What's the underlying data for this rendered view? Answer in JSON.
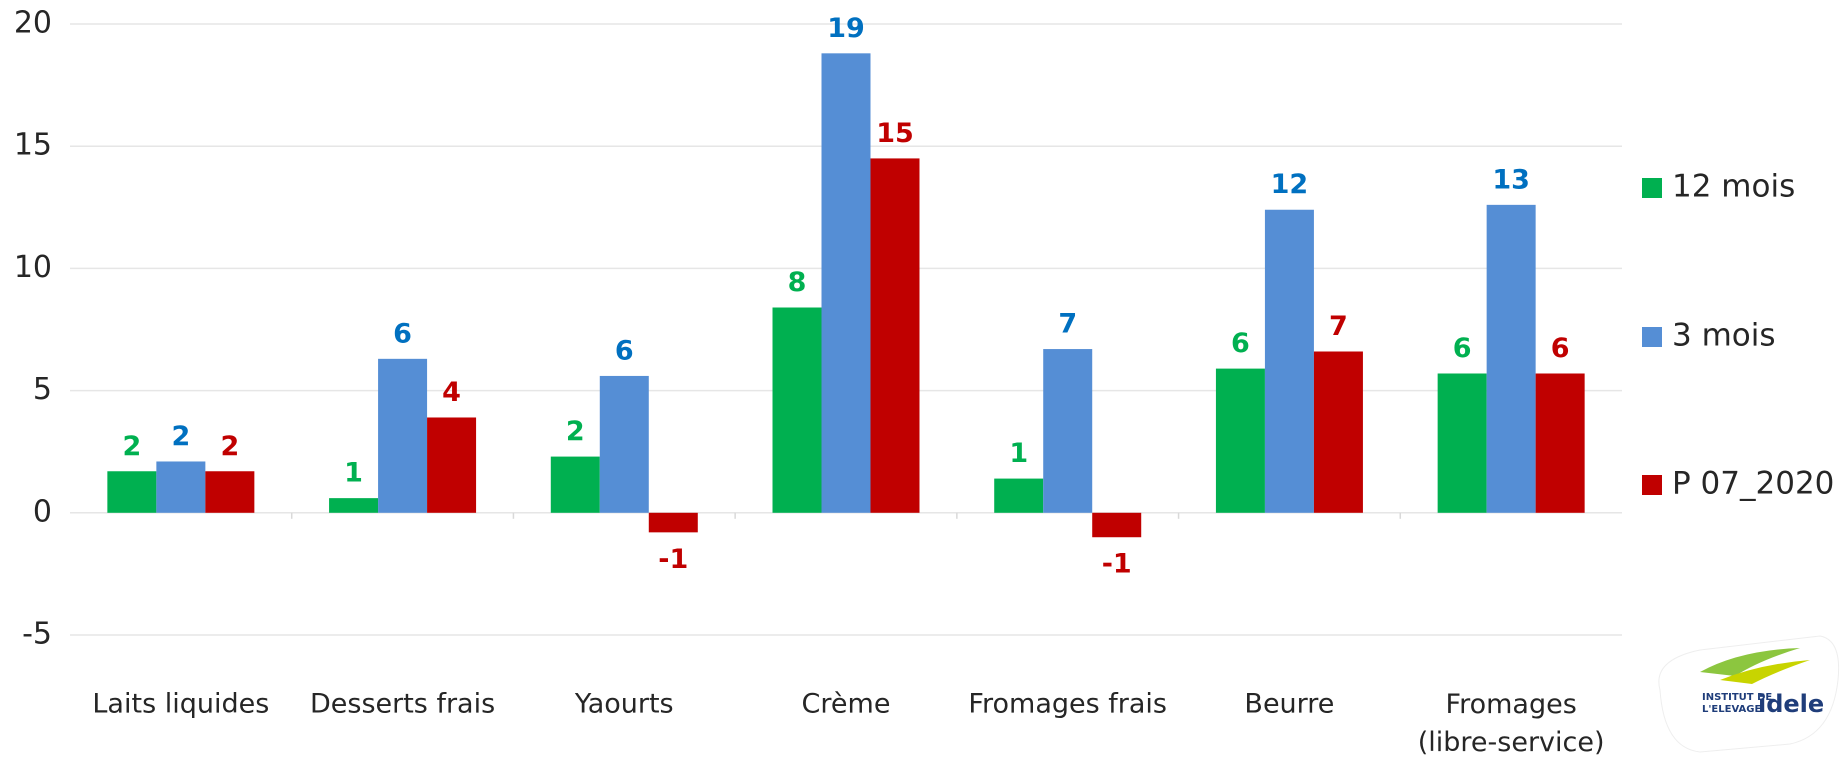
{
  "chart_data": {
    "type": "bar",
    "categories": [
      "Laits liquides",
      "Desserts frais",
      "Yaourts",
      "Crème",
      "Fromages frais",
      "Beurre",
      "Fromages\n(libre-service)"
    ],
    "series": [
      {
        "name": "12 mois",
        "color": "#00b050",
        "label_color": "#00b050",
        "values": [
          1.7,
          0.6,
          2.3,
          8.4,
          1.4,
          5.9,
          5.7
        ],
        "value_labels": [
          "2",
          "1",
          "2",
          "8",
          "1",
          "6",
          "6"
        ]
      },
      {
        "name": "3 mois",
        "color": "#558ed5",
        "label_color": "#0070c0",
        "values": [
          2.1,
          6.3,
          5.6,
          18.8,
          6.7,
          12.4,
          12.6
        ],
        "value_labels": [
          "2",
          "6",
          "6",
          "19",
          "7",
          "12",
          "13"
        ]
      },
      {
        "name": "P 07_2020",
        "color": "#c00000",
        "label_color": "#c00000",
        "values": [
          1.7,
          3.9,
          -0.8,
          14.5,
          -1.0,
          6.6,
          5.7
        ],
        "value_labels": [
          "2",
          "4",
          "-1",
          "15",
          "-1",
          "7",
          "6"
        ]
      }
    ],
    "ylim": [
      -5,
      20
    ],
    "yticks": [
      -5,
      0,
      5,
      10,
      15,
      20
    ],
    "grid": true,
    "legend": "right"
  },
  "logo": {
    "line1": "INSTITUT DE",
    "line2": "L'ELEVAGE",
    "brand": "idele"
  }
}
